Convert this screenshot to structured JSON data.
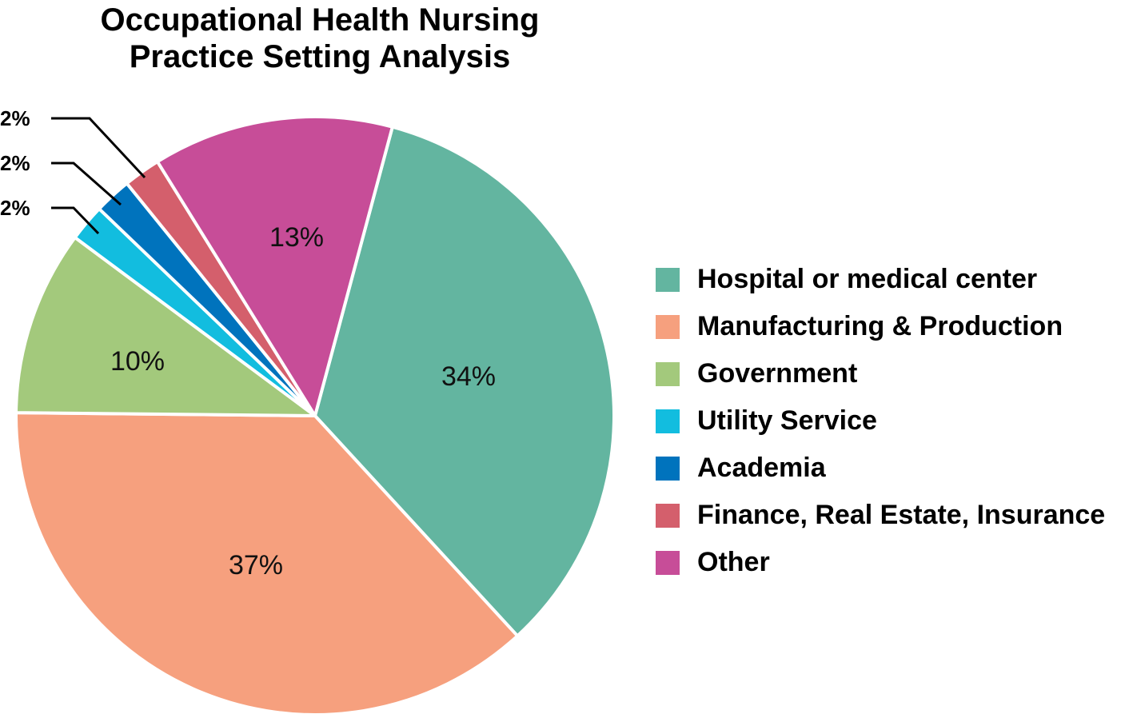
{
  "title": {
    "line1": "Occupational Health Nursing",
    "line2": "Practice Setting Analysis"
  },
  "chart_data": {
    "type": "pie",
    "title": "Occupational Health Nursing Practice Setting Analysis",
    "categories": [
      "Hospital or medical center",
      "Manufacturing & Production",
      "Government",
      "Utility Service",
      "Academia",
      "Finance, Real Estate, Insurance",
      "Other"
    ],
    "values": [
      34,
      37,
      10,
      2,
      2,
      2,
      13
    ],
    "colors": [
      "#63b5a0",
      "#f6a07e",
      "#a3c97c",
      "#12bddf",
      "#0073bd",
      "#d45f6c",
      "#c74d98"
    ],
    "labels": [
      "34%",
      "37%",
      "10%",
      "2%",
      "2%",
      "2%",
      "13%"
    ],
    "legend_position": "right",
    "start_angle_deg": 15,
    "direction": "clockwise"
  },
  "legend": {
    "items": [
      {
        "label": "Hospital or medical center",
        "color": "#63b5a0"
      },
      {
        "label": "Manufacturing & Production",
        "color": "#f6a07e"
      },
      {
        "label": "Government",
        "color": "#a3c97c"
      },
      {
        "label": "Utility Service",
        "color": "#12bddf"
      },
      {
        "label": "Academia",
        "color": "#0073bd"
      },
      {
        "label": "Finance, Real Estate, Insurance",
        "color": "#d45f6c"
      },
      {
        "label": "Other",
        "color": "#c74d98"
      }
    ]
  },
  "callouts": {
    "finance": "2%",
    "academia": "2%",
    "utility": "2%"
  }
}
